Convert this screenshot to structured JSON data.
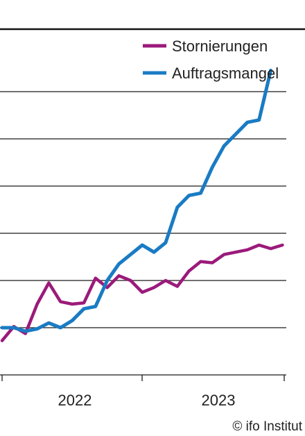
{
  "chart_data": {
    "type": "line",
    "x_tick_labels": [
      "2022",
      "2023"
    ],
    "series": [
      {
        "name": "Stornierungen",
        "color": "#9b1a7a",
        "values": [
          -5.5,
          0.5,
          -2.5,
          10,
          19,
          11,
          10,
          10.5,
          21,
          17,
          22,
          20,
          15,
          17,
          20,
          17.5,
          24,
          28,
          27.5,
          31,
          32,
          33,
          35,
          33.5,
          35
        ]
      },
      {
        "name": "Auftragsmangel",
        "color": "#1a7bc4",
        "values": [
          0,
          0,
          -1.5,
          -0.5,
          2,
          0,
          3,
          8,
          9,
          20,
          27,
          31,
          35,
          32,
          36,
          51,
          56,
          57,
          68,
          77,
          82,
          87,
          88,
          109
        ]
      }
    ],
    "y_range": [
      -10,
      110
    ],
    "gridlines": [
      0,
      20,
      40,
      60,
      80,
      100
    ],
    "grid": true,
    "legend_position": "top-right",
    "source": "© ifo Institut"
  }
}
